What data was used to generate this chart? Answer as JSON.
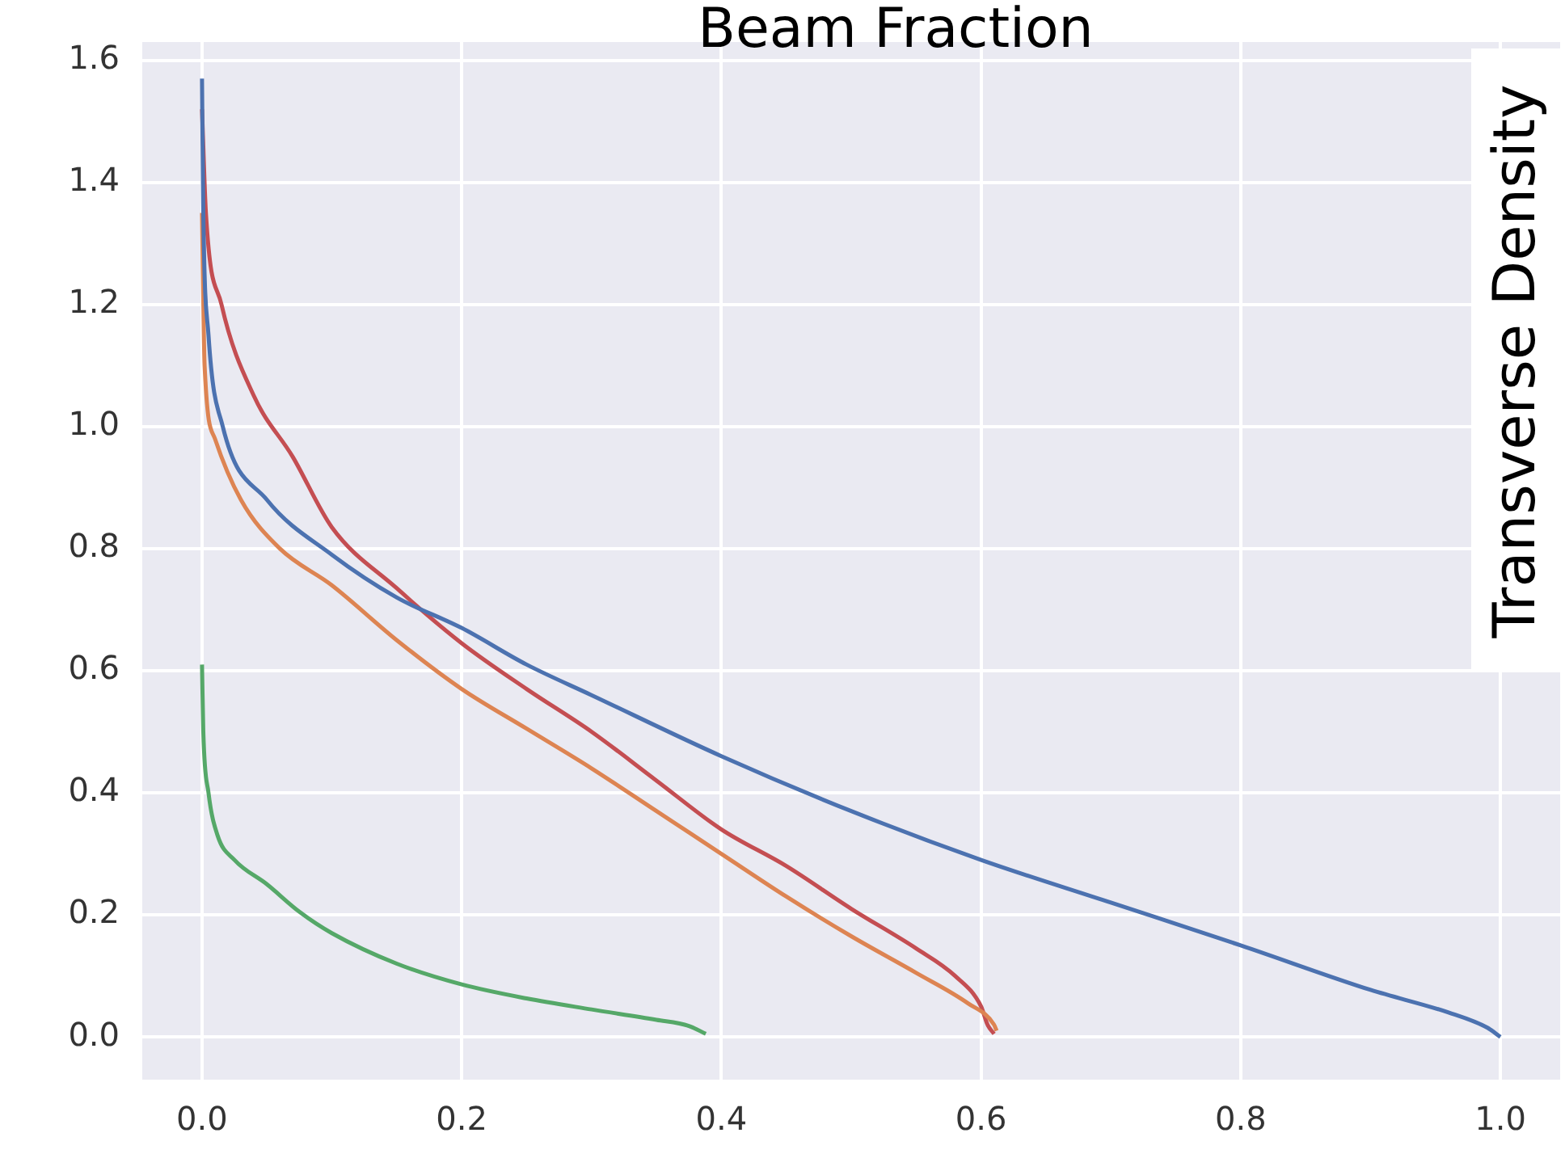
{
  "chart_data": {
    "type": "line",
    "xlabel": "Beam Fraction",
    "ylabel": "Transverse Density",
    "grid": true,
    "legend": false,
    "marker": "none",
    "line_style": "solid",
    "xlim": [
      -0.046,
      1.046
    ],
    "ylim": [
      -0.07,
      1.63
    ],
    "xticks": [
      {
        "value": 0,
        "label": "0.0"
      },
      0.2,
      0.4,
      0.6,
      0.8,
      {
        "value": 1,
        "label": "1.0"
      }
    ],
    "yticks": [
      {
        "value": 0,
        "label": "0.0"
      },
      0.2,
      0.4,
      0.6,
      0.8,
      {
        "value": 1,
        "label": "1.0"
      },
      1.2,
      1.4,
      1.6
    ],
    "series": [
      {
        "color": "#4c72b0",
        "x": [
          0,
          0.001,
          0.005,
          0.016,
          0.05,
          0.1,
          0.15,
          0.2,
          0.25,
          0.3,
          0.4,
          0.5,
          0.6,
          0.7,
          0.8,
          0.9,
          0.96,
          0.99,
          1.0
        ],
        "values": [
          1.57,
          1.35,
          1.15,
          1.0,
          0.88,
          0.79,
          0.72,
          0.67,
          0.61,
          0.56,
          0.46,
          0.37,
          0.29,
          0.22,
          0.15,
          0.077,
          0.04,
          0.015,
          0
        ]
      },
      {
        "color": "#dd8452",
        "x": [
          0,
          0.002,
          0.01,
          0.03,
          0.06,
          0.1,
          0.15,
          0.2,
          0.25,
          0.3,
          0.35,
          0.4,
          0.45,
          0.5,
          0.55,
          0.59,
          0.61,
          0.612
        ],
        "values": [
          1.35,
          1.1,
          0.98,
          0.88,
          0.8,
          0.74,
          0.65,
          0.57,
          0.505,
          0.44,
          0.37,
          0.3,
          0.23,
          0.165,
          0.105,
          0.055,
          0.02,
          0.01
        ]
      },
      {
        "color": "#55a868",
        "x": [
          0,
          0.001,
          0.005,
          0.012,
          0.025,
          0.05,
          0.075,
          0.1,
          0.15,
          0.2,
          0.25,
          0.3,
          0.35,
          0.375,
          0.388
        ],
        "values": [
          0.61,
          0.5,
          0.4,
          0.33,
          0.29,
          0.25,
          0.205,
          0.17,
          0.12,
          0.086,
          0.063,
          0.045,
          0.028,
          0.018,
          0.005
        ]
      },
      {
        "color": "#c44e52",
        "x": [
          0,
          0.003,
          0.015,
          0.04,
          0.07,
          0.1,
          0.15,
          0.2,
          0.25,
          0.3,
          0.35,
          0.4,
          0.45,
          0.5,
          0.55,
          0.58,
          0.6,
          0.605,
          0.61
        ],
        "values": [
          1.52,
          1.35,
          1.2,
          1.05,
          0.95,
          0.835,
          0.735,
          0.645,
          0.57,
          0.5,
          0.42,
          0.34,
          0.28,
          0.21,
          0.145,
          0.1,
          0.05,
          0.02,
          0.005
        ]
      }
    ]
  }
}
